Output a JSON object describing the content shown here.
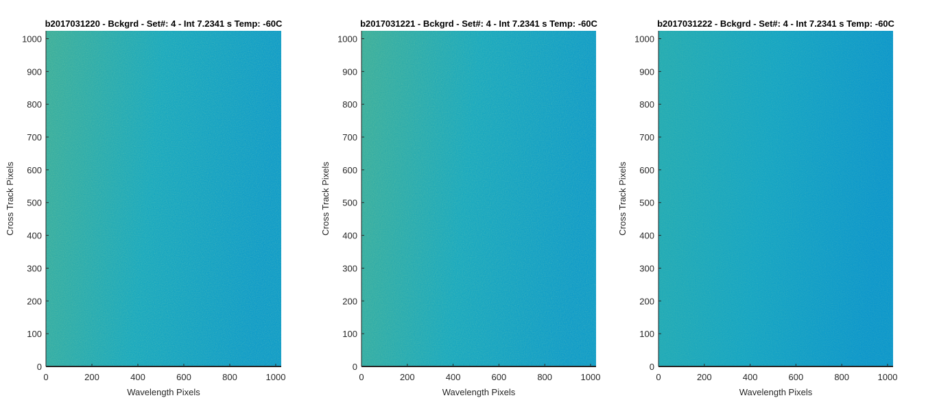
{
  "chart_data": [
    {
      "type": "heatmap",
      "title": "b2017031220 - Bckgrd - Set#: 4 - Int 7.2341 s Temp: -60C",
      "xlabel": "Wavelength Pixels",
      "ylabel": "Cross Track Pixels",
      "xlim": [
        0,
        1024
      ],
      "ylim": [
        0,
        1024
      ],
      "xticks": [
        0,
        200,
        400,
        600,
        800,
        1000
      ],
      "yticks": [
        0,
        100,
        200,
        300,
        400,
        500,
        600,
        700,
        800,
        900,
        1000
      ],
      "colormap": [
        "#3cae9c",
        "#19a8bf",
        "#0f9bc9"
      ],
      "gradient_strength": 1.0
    },
    {
      "type": "heatmap",
      "title": "b2017031221 - Bckgrd - Set#: 4 - Int 7.2341 s Temp: -60C",
      "xlabel": "Wavelength Pixels",
      "ylabel": "Cross Track Pixels",
      "xlim": [
        0,
        1024
      ],
      "ylim": [
        0,
        1024
      ],
      "xticks": [
        0,
        200,
        400,
        600,
        800,
        1000
      ],
      "yticks": [
        0,
        100,
        200,
        300,
        400,
        500,
        600,
        700,
        800,
        900,
        1000
      ],
      "colormap": [
        "#3cae9c",
        "#19a8bf",
        "#0f9bc9"
      ],
      "gradient_strength": 1.0
    },
    {
      "type": "heatmap",
      "title": "b2017031222 - Bckgrd - Set#: 4 - Int 7.2341 s Temp: -60C",
      "xlabel": "Wavelength Pixels",
      "ylabel": "Cross Track Pixels",
      "xlim": [
        0,
        1024
      ],
      "ylim": [
        0,
        1024
      ],
      "xticks": [
        0,
        200,
        400,
        600,
        800,
        1000
      ],
      "yticks": [
        0,
        100,
        200,
        300,
        400,
        500,
        600,
        700,
        800,
        900,
        1000
      ],
      "colormap": [
        "#23abb3",
        "#14a4c4",
        "#0b96cc"
      ],
      "gradient_strength": 0.7
    }
  ]
}
